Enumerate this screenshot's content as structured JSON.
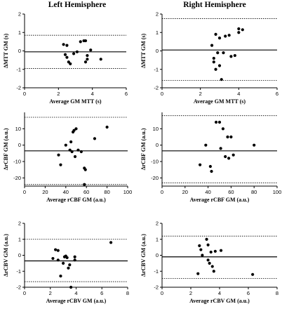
{
  "titles": {
    "left": "Left Hemisphere",
    "right": "Right Hemisphere"
  },
  "chart_data": [
    {
      "id": "mtt-left",
      "type": "scatter",
      "xlabel": "Average GM MTT (s)",
      "ylabel": "ΔMTT GM (s)",
      "xlim": [
        0,
        6
      ],
      "ylim": [
        -2,
        2
      ],
      "xticks": [
        0,
        2,
        4,
        6
      ],
      "yticks": [
        -2,
        -1,
        0,
        1,
        2
      ],
      "mean": -0.05,
      "loa": [
        0.85,
        -0.95
      ],
      "points": [
        [
          2.3,
          0.35
        ],
        [
          2.5,
          0.3
        ],
        [
          2.4,
          -0.2
        ],
        [
          2.5,
          -0.35
        ],
        [
          2.6,
          -0.6
        ],
        [
          2.7,
          -0.7
        ],
        [
          2.9,
          -0.15
        ],
        [
          3.1,
          -0.05
        ],
        [
          3.3,
          0.5
        ],
        [
          3.5,
          0.55
        ],
        [
          3.6,
          0.55
        ],
        [
          3.6,
          -0.6
        ],
        [
          3.7,
          -0.25
        ],
        [
          3.7,
          -0.45
        ],
        [
          3.9,
          0.05
        ],
        [
          4.5,
          -0.45
        ]
      ]
    },
    {
      "id": "mtt-right",
      "type": "scatter",
      "xlabel": "Average GM MTT (s)",
      "ylabel": "ΔMTT GM (s)",
      "xlim": [
        0,
        6
      ],
      "ylim": [
        -2,
        2
      ],
      "xticks": [
        0,
        2,
        4,
        6
      ],
      "yticks": [
        -2,
        -1,
        0,
        1,
        2
      ],
      "mean": 0.05,
      "loa": [
        1.75,
        -1.6
      ],
      "points": [
        [
          2.6,
          0.3
        ],
        [
          2.7,
          -0.4
        ],
        [
          2.7,
          -0.6
        ],
        [
          2.8,
          0.9
        ],
        [
          2.8,
          -1.0
        ],
        [
          2.9,
          -0.1
        ],
        [
          3.0,
          0.7
        ],
        [
          3.0,
          -0.8
        ],
        [
          3.1,
          -1.55
        ],
        [
          3.2,
          -0.1
        ],
        [
          3.3,
          0.8
        ],
        [
          3.5,
          0.85
        ],
        [
          3.6,
          -0.3
        ],
        [
          3.8,
          -0.25
        ],
        [
          4.0,
          1.2
        ],
        [
          4.0,
          1.0
        ],
        [
          4.2,
          1.15
        ]
      ]
    },
    {
      "id": "rcbf-left",
      "type": "scatter",
      "xlabel": "Average rCBF GM (a.u.)",
      "ylabel": "ΔrCBF GM (a.u.)",
      "xlim": [
        0,
        100
      ],
      "ylim": [
        -25,
        20
      ],
      "xticks": [
        0,
        20,
        40,
        60,
        80,
        100
      ],
      "yticks": [
        -20,
        -10,
        0,
        10
      ],
      "mean": -3.5,
      "loa": [
        17,
        -24
      ],
      "points": [
        [
          33,
          -6
        ],
        [
          35,
          -12
        ],
        [
          40,
          0
        ],
        [
          44,
          -3
        ],
        [
          45,
          2
        ],
        [
          46,
          -4
        ],
        [
          47,
          8
        ],
        [
          48,
          9
        ],
        [
          49,
          -7
        ],
        [
          50,
          10
        ],
        [
          52,
          -3
        ],
        [
          55,
          -4
        ],
        [
          58,
          -14
        ],
        [
          59,
          -15
        ],
        [
          58,
          -24
        ],
        [
          68,
          4
        ],
        [
          80,
          11
        ]
      ]
    },
    {
      "id": "rcbf-right",
      "type": "scatter",
      "xlabel": "Average rCBF GM (a.u.)",
      "ylabel": "ΔrCBF GM (a.u.)",
      "xlim": [
        0,
        100
      ],
      "ylim": [
        -25,
        20
      ],
      "xticks": [
        0,
        20,
        40,
        60,
        80,
        100
      ],
      "yticks": [
        -20,
        -10,
        0,
        10
      ],
      "mean": -3.5,
      "loa": [
        18,
        -23
      ],
      "points": [
        [
          33,
          -12
        ],
        [
          38,
          0
        ],
        [
          42,
          -13
        ],
        [
          43,
          -16
        ],
        [
          47,
          14
        ],
        [
          50,
          14
        ],
        [
          51,
          -2
        ],
        [
          53,
          10
        ],
        [
          55,
          -7
        ],
        [
          57,
          5
        ],
        [
          58,
          -8
        ],
        [
          60,
          5
        ],
        [
          62,
          -6
        ],
        [
          80,
          0
        ]
      ]
    },
    {
      "id": "rcbv-left",
      "type": "scatter",
      "xlabel": "Average rCBV GM (a.u.)",
      "ylabel": "ΔrCBV GM (a.u.)",
      "xlim": [
        0,
        8
      ],
      "ylim": [
        -2,
        2
      ],
      "xticks": [
        0,
        2,
        4,
        6,
        8
      ],
      "yticks": [
        -2,
        -1,
        0,
        1,
        2
      ],
      "mean": -0.35,
      "loa": [
        1.0,
        -1.65
      ],
      "points": [
        [
          2.2,
          -0.2
        ],
        [
          2.4,
          0.35
        ],
        [
          2.6,
          0.3
        ],
        [
          2.6,
          -0.3
        ],
        [
          2.8,
          -1.3
        ],
        [
          3.0,
          -0.5
        ],
        [
          3.1,
          -0.1
        ],
        [
          3.2,
          -0.05
        ],
        [
          3.3,
          -0.15
        ],
        [
          3.4,
          -0.8
        ],
        [
          3.5,
          -0.6
        ],
        [
          3.6,
          -2.0
        ],
        [
          3.9,
          -0.1
        ],
        [
          3.9,
          -0.3
        ],
        [
          6.7,
          0.8
        ]
      ]
    },
    {
      "id": "rcbv-right",
      "type": "scatter",
      "xlabel": "Average rCBV GM (a.u.)",
      "ylabel": "ΔrCBV GM (a.u.)",
      "xlim": [
        0,
        8
      ],
      "ylim": [
        -2,
        2
      ],
      "xticks": [
        0,
        2,
        4,
        6,
        8
      ],
      "yticks": [
        -2,
        -1,
        0,
        1,
        2
      ],
      "mean": -0.1,
      "loa": [
        1.2,
        -1.45
      ],
      "points": [
        [
          2.5,
          -1.15
        ],
        [
          2.6,
          0.6
        ],
        [
          2.7,
          0.35
        ],
        [
          2.8,
          0.0
        ],
        [
          3.1,
          1.0
        ],
        [
          3.2,
          0.65
        ],
        [
          3.2,
          -0.3
        ],
        [
          3.3,
          -0.5
        ],
        [
          3.4,
          0.2
        ],
        [
          3.5,
          -0.7
        ],
        [
          3.6,
          -1.0
        ],
        [
          3.7,
          0.25
        ],
        [
          4.1,
          0.3
        ],
        [
          6.3,
          -1.2
        ]
      ]
    }
  ]
}
